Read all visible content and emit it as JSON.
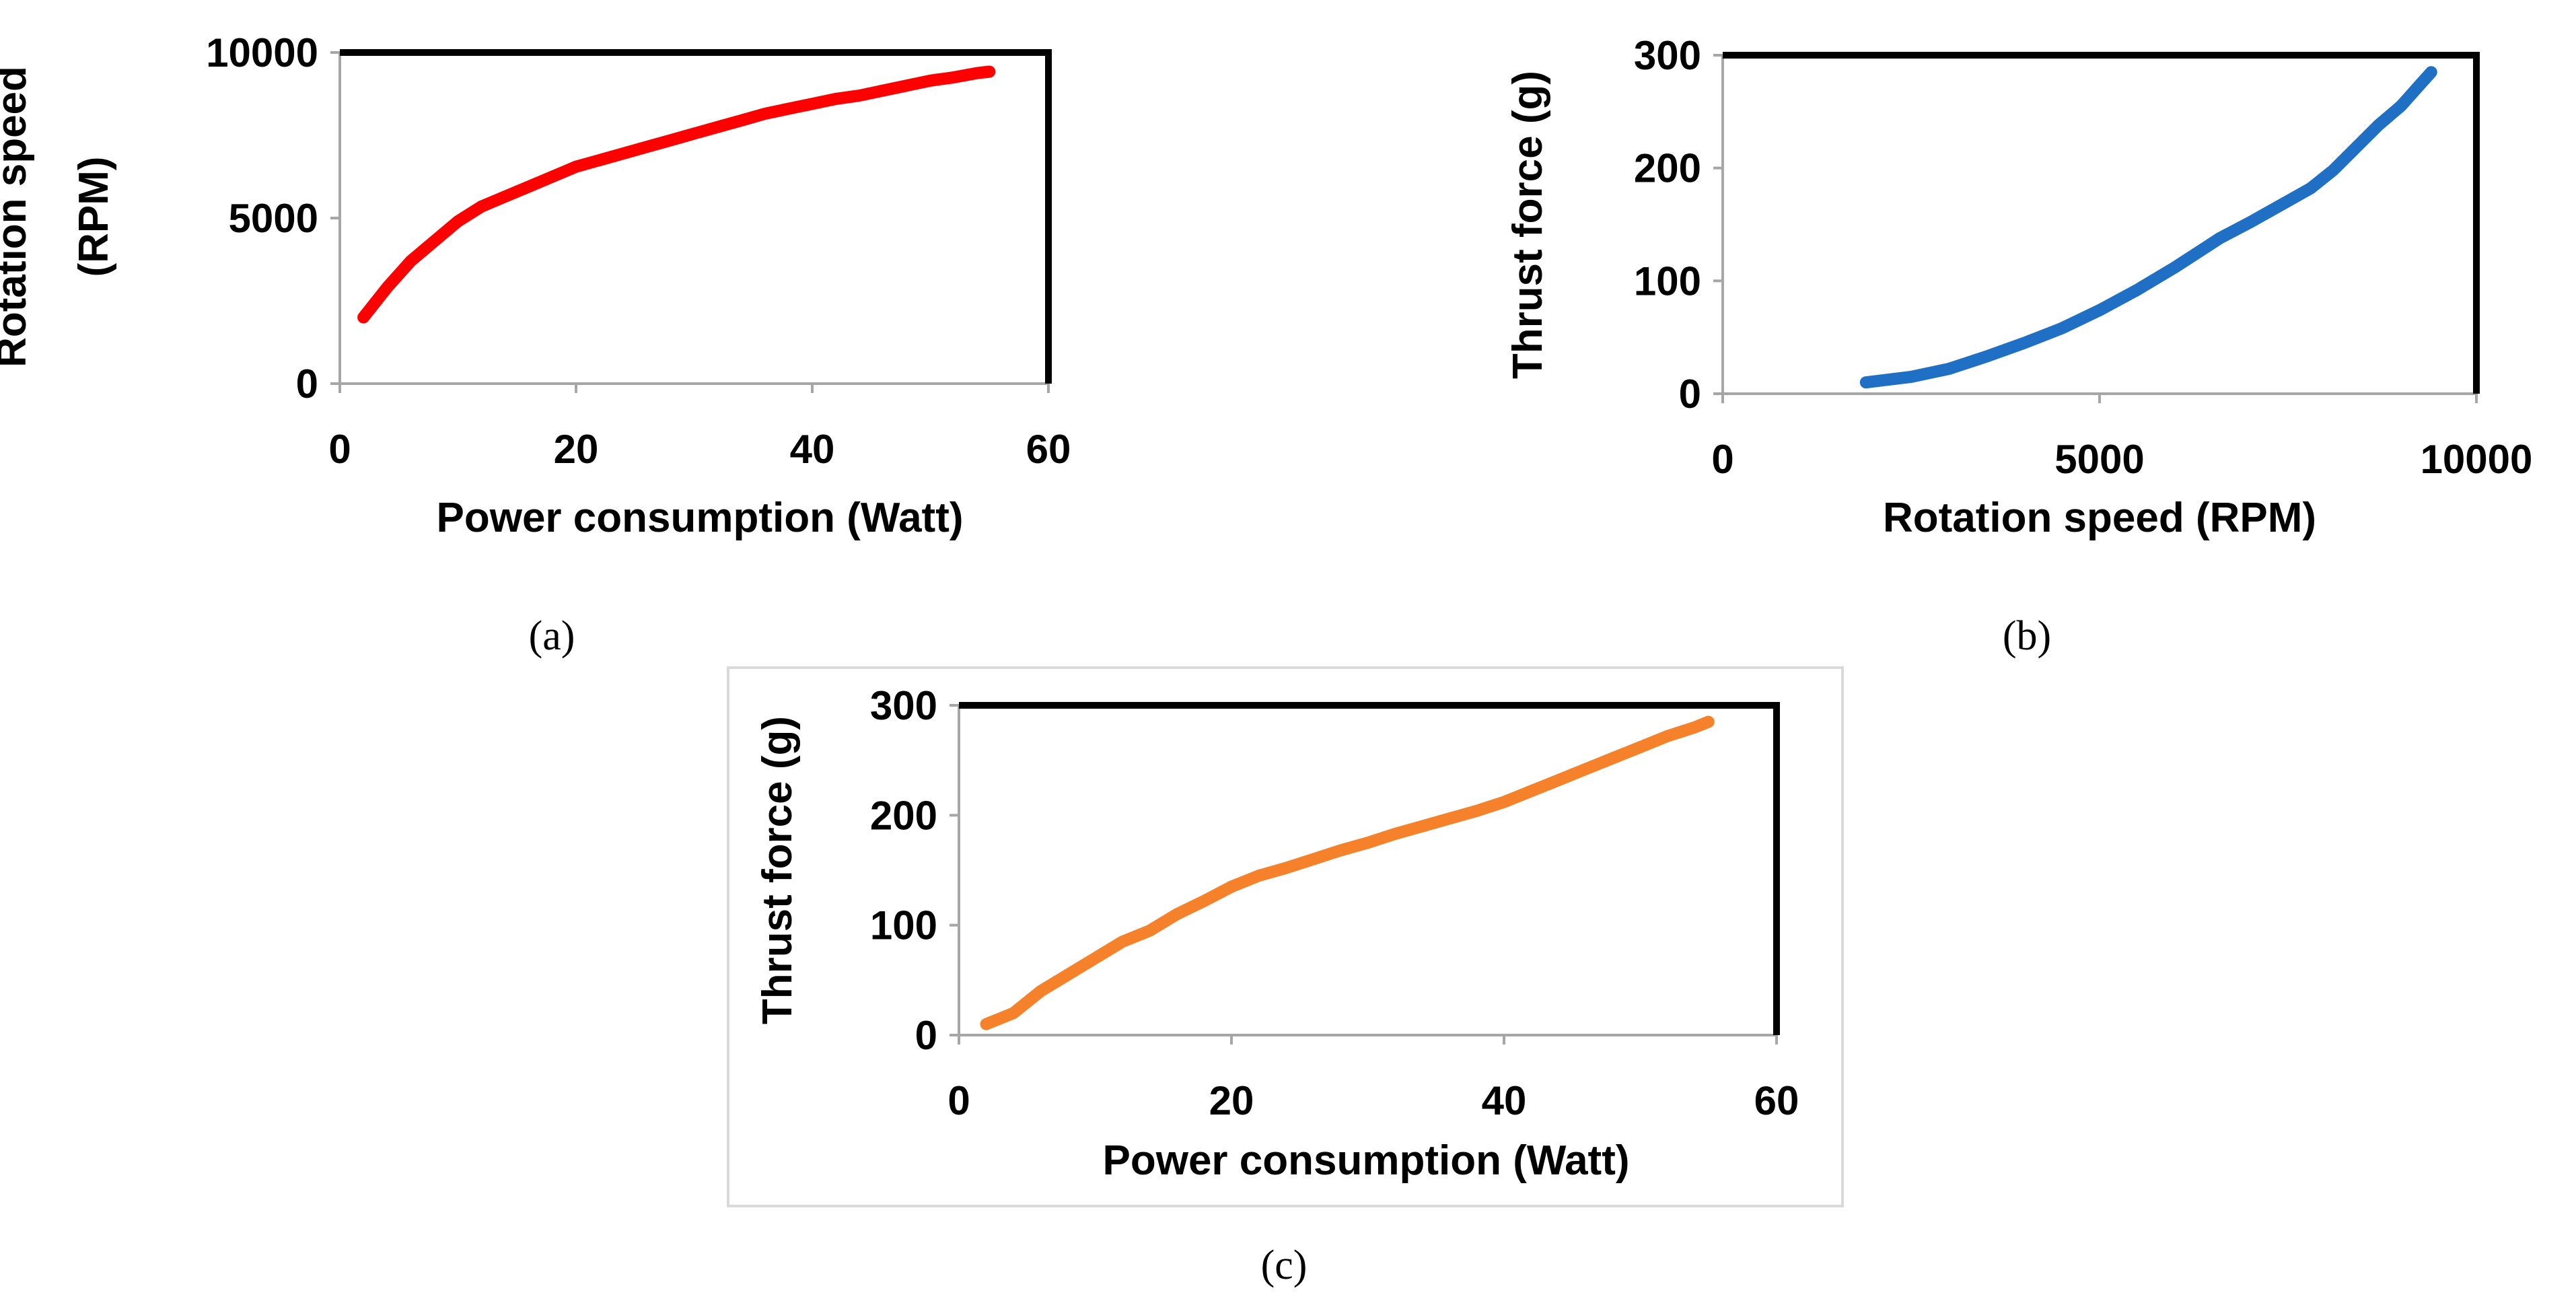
{
  "chart_data": [
    {
      "type": "line",
      "caption": "(a)",
      "xlabel": "Power consumption (Watt)",
      "ylabel_lines": [
        "Rotation speed",
        "(RPM)"
      ],
      "xlim": [
        0,
        60
      ],
      "ylim": [
        0,
        10000
      ],
      "xticks": [
        "0",
        "20",
        "40",
        "60"
      ],
      "yticks": [
        "0",
        "5000",
        "10000"
      ],
      "grid": false,
      "legend": "none",
      "series": [
        {
          "color": "#ff0000",
          "x": [
            2,
            4,
            6,
            8,
            10,
            12,
            14,
            16,
            18,
            20,
            22,
            24,
            26,
            28,
            30,
            32,
            34,
            36,
            38,
            40,
            42,
            44,
            46,
            48,
            50,
            52,
            54,
            55
          ],
          "y": [
            2000,
            2900,
            3700,
            4300,
            4900,
            5350,
            5650,
            5950,
            6250,
            6550,
            6750,
            6950,
            7150,
            7350,
            7550,
            7750,
            7950,
            8150,
            8300,
            8450,
            8600,
            8700,
            8850,
            9000,
            9150,
            9250,
            9380,
            9420
          ]
        }
      ]
    },
    {
      "type": "line",
      "caption": "(b)",
      "xlabel": "Rotation speed (RPM)",
      "ylabel_lines": [
        "Thrust force (g)"
      ],
      "xlim": [
        0,
        10000
      ],
      "ylim": [
        0,
        300
      ],
      "xticks": [
        "0",
        "5000",
        "10000"
      ],
      "yticks": [
        "0",
        "100",
        "200",
        "300"
      ],
      "grid": false,
      "legend": "none",
      "series": [
        {
          "color": "#1f6fc4",
          "x": [
            1900,
            2500,
            3000,
            3500,
            4000,
            4500,
            5000,
            5500,
            6000,
            6300,
            6600,
            7000,
            7400,
            7800,
            8100,
            8400,
            8700,
            9000,
            9200,
            9400
          ],
          "y": [
            10,
            15,
            22,
            33,
            45,
            58,
            74,
            92,
            112,
            125,
            138,
            152,
            167,
            182,
            198,
            218,
            238,
            255,
            270,
            285
          ]
        }
      ]
    },
    {
      "type": "line",
      "caption": "(c)",
      "xlabel": "Power consumption (Watt)",
      "ylabel_lines": [
        "Thrust force (g)"
      ],
      "xlim": [
        0,
        60
      ],
      "ylim": [
        0,
        300
      ],
      "xticks": [
        "0",
        "20",
        "40",
        "60"
      ],
      "yticks": [
        "0",
        "100",
        "200",
        "300"
      ],
      "grid": false,
      "legend": "none",
      "series": [
        {
          "color": "#f5822a",
          "x": [
            2,
            4,
            6,
            8,
            10,
            12,
            14,
            16,
            18,
            20,
            22,
            24,
            26,
            28,
            30,
            32,
            34,
            36,
            38,
            40,
            42,
            44,
            46,
            48,
            50,
            52,
            54,
            55
          ],
          "y": [
            10,
            20,
            40,
            55,
            70,
            85,
            95,
            110,
            122,
            135,
            145,
            152,
            160,
            168,
            175,
            183,
            190,
            197,
            204,
            212,
            222,
            232,
            242,
            252,
            262,
            272,
            280,
            285
          ]
        }
      ]
    }
  ]
}
